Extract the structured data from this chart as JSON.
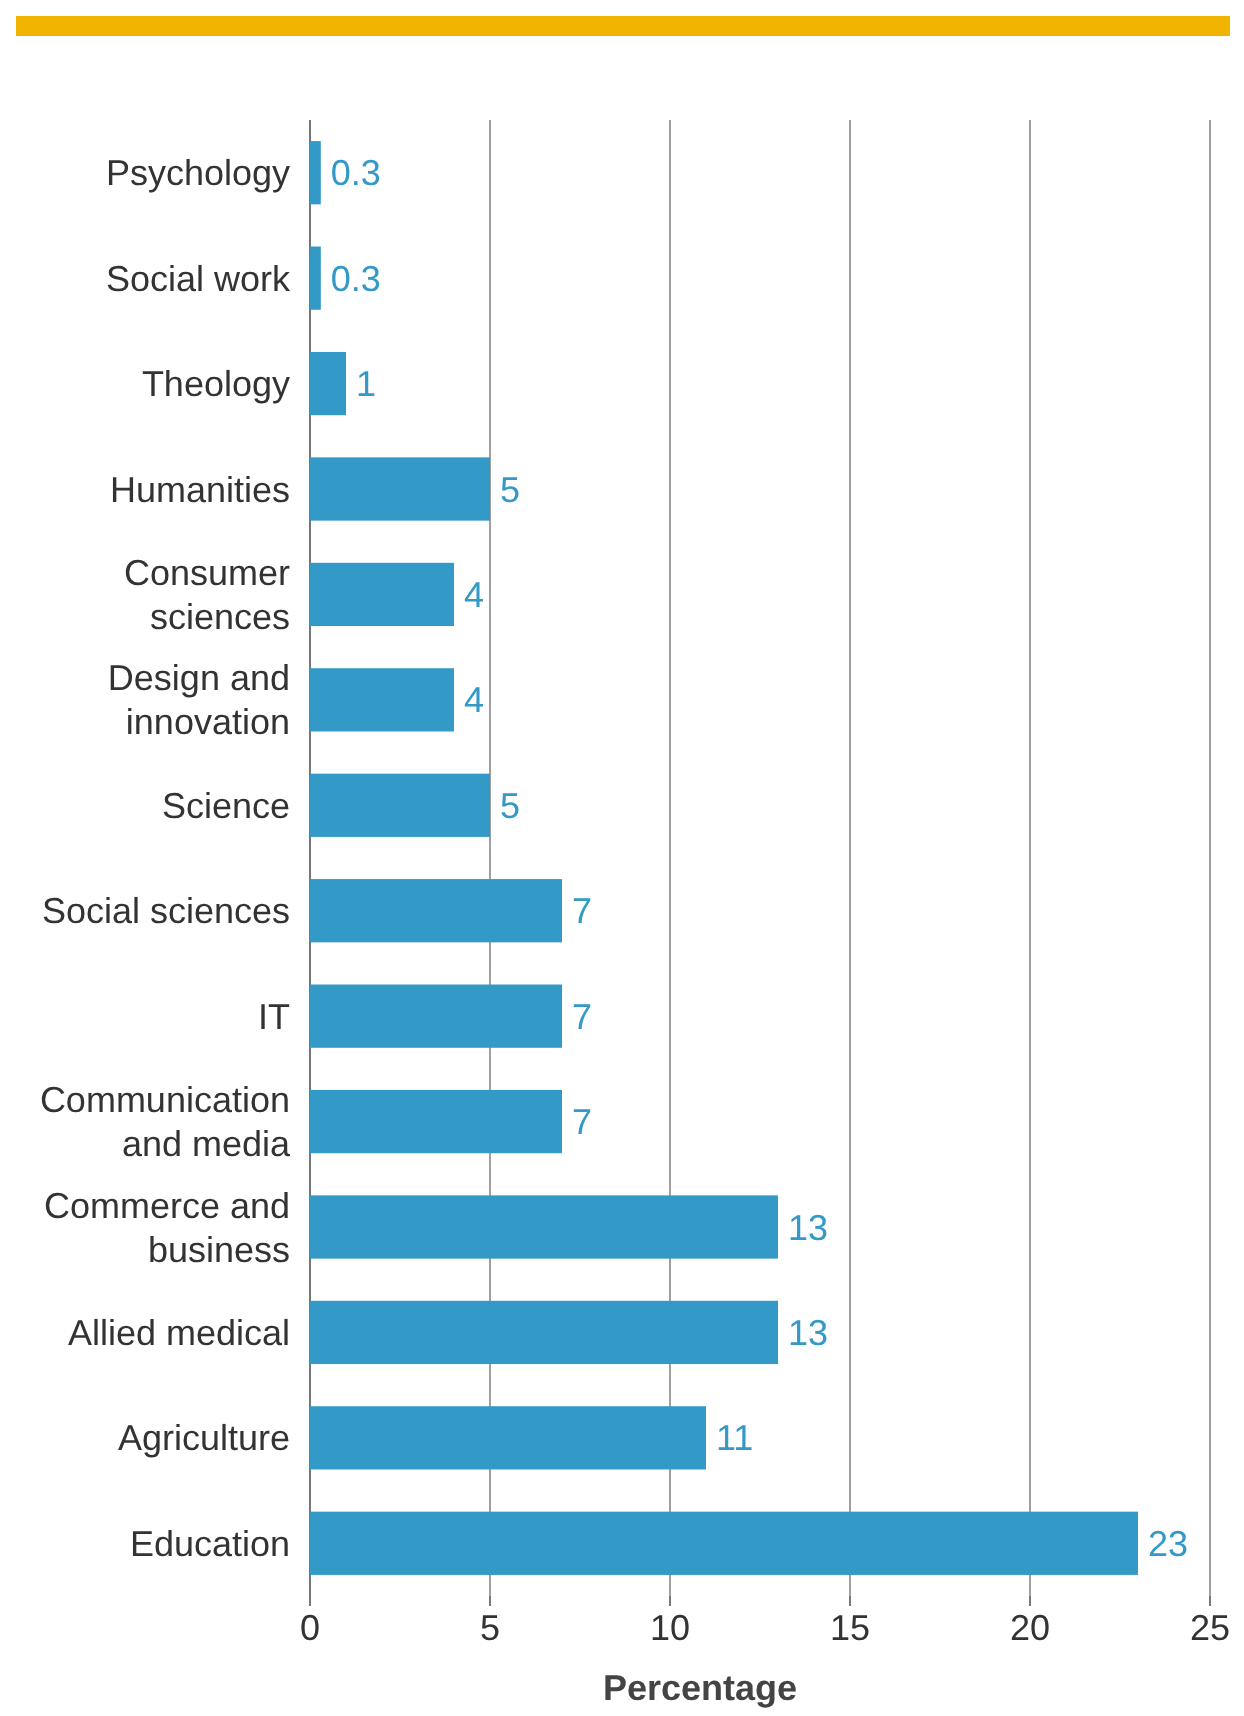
{
  "chart_data": {
    "type": "bar",
    "orientation": "horizontal",
    "xlabel": "Percentage",
    "categories": [
      "Psychology",
      "Social work",
      "Theology",
      "Humanities",
      "Consumer sciences",
      "Design and innovation",
      "Science",
      "Social sciences",
      "IT",
      "Communication and media",
      "Commerce and business",
      "Allied medical",
      "Agriculture",
      "Education"
    ],
    "values": [
      0.3,
      0.3,
      1,
      5,
      4,
      4,
      5,
      7,
      7,
      7,
      13,
      13,
      11,
      23
    ],
    "color": "#3399c6",
    "data_labels": true,
    "xlim": [
      0,
      25
    ],
    "xticks": [
      0,
      5,
      10,
      15,
      20,
      25
    ],
    "grid": "x"
  }
}
